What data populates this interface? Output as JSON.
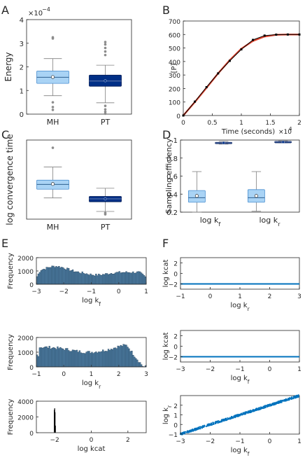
{
  "panel_labels": [
    "A",
    "B",
    "C",
    "D",
    "E",
    "F"
  ],
  "colors": {
    "light_box": "#a9d3f5",
    "light_box_edge": "#4a8fd0",
    "dark_box": "#002f86",
    "hist_bar": "#4e7ea4",
    "line_black": "#000000",
    "line_red": "#e0442e",
    "scatter_blue": "#0072bd"
  },
  "chart_data": [
    {
      "id": "A",
      "type": "box",
      "ylabel": "Energy",
      "y_exponent": "×10^-4",
      "ylim": [
        0,
        4
      ],
      "yticks": [
        0,
        1,
        2,
        3,
        4
      ],
      "categories": [
        "MH",
        "PT"
      ],
      "boxes": [
        {
          "q1": 1.3,
          "median": 1.56,
          "q3": 1.82,
          "whisker_low": 0.78,
          "whisker_high": 2.35,
          "mean": 1.57,
          "outliers": [
            3.2,
            3.25,
            0.5,
            0.3,
            0.18
          ],
          "style": "light"
        },
        {
          "q1": 1.18,
          "median": 1.4,
          "q3": 1.65,
          "whisker_low": 0.48,
          "whisker_high": 2.07,
          "mean": 1.41,
          "outliers": [
            2.5,
            2.65,
            2.8,
            2.95,
            3.05,
            0.35,
            0.2,
            0.1,
            0.02
          ],
          "style": "dark"
        }
      ]
    },
    {
      "id": "B",
      "type": "line",
      "xlabel": "Time (seconds)",
      "x_exponent": "×10^4",
      "ylabel": "[P]",
      "xlim": [
        0,
        2
      ],
      "ylim": [
        0,
        700
      ],
      "xticks": [
        0,
        0.5,
        1,
        1.5,
        2
      ],
      "yticks": [
        0,
        100,
        200,
        300,
        400,
        500,
        600,
        700
      ],
      "series": [
        {
          "color": "red",
          "x": [
            0,
            0.2,
            0.4,
            0.6,
            0.8,
            1.0,
            1.2,
            1.4,
            1.6,
            1.8,
            2.0
          ],
          "y": [
            0,
            100,
            205,
            312,
            410,
            495,
            552,
            585,
            598,
            600,
            600
          ]
        },
        {
          "color": "black",
          "markers": true,
          "x": [
            0,
            0.2,
            0.4,
            0.6,
            0.8,
            1.0,
            1.2,
            1.4,
            1.6,
            1.8,
            2.0
          ],
          "y": [
            0,
            103,
            210,
            312,
            405,
            490,
            560,
            592,
            599,
            600,
            600
          ]
        }
      ]
    },
    {
      "id": "C",
      "type": "box",
      "ylabel": "log convergence time",
      "ylim": [
        1.5,
        5.6
      ],
      "categories": [
        "MH",
        "PT"
      ],
      "boxes": [
        {
          "q1": 3.05,
          "median": 3.3,
          "q3": 3.52,
          "whisker_low": 2.6,
          "whisker_high": 4.2,
          "mean": 3.32,
          "outliers": [
            5.2
          ],
          "style": "light"
        },
        {
          "q1": 2.4,
          "median": 2.55,
          "q3": 2.68,
          "whisker_low": 1.9,
          "whisker_high": 3.1,
          "mean": 2.55,
          "outliers": [
            1.82,
            1.75
          ],
          "style": "dark"
        }
      ]
    },
    {
      "id": "D",
      "type": "box",
      "ylabel": "Sampling efficiency",
      "ylim": [
        0.2,
        1
      ],
      "yticks": [
        0.2,
        0.4,
        0.6,
        0.8,
        1
      ],
      "categories": [
        "log k_f",
        "log k_r"
      ],
      "boxes": [
        {
          "q1": 0.31,
          "median": 0.36,
          "q3": 0.44,
          "whisker_low": 0.2,
          "whisker_high": 0.65,
          "mean": 0.38,
          "outliers": [],
          "style": "light",
          "offset": -0.5
        },
        {
          "q1": 0.962,
          "median": 0.968,
          "q3": 0.975,
          "whisker_low": 0.955,
          "whisker_high": 0.985,
          "mean": 0.968,
          "outliers": [],
          "style": "dark",
          "offset": 0.5
        },
        {
          "q1": 0.31,
          "median": 0.36,
          "q3": 0.45,
          "whisker_low": 0.21,
          "whisker_high": 0.65,
          "mean": 0.38,
          "outliers": [],
          "style": "light",
          "offset": -0.5
        },
        {
          "q1": 0.975,
          "median": 0.98,
          "q3": 0.985,
          "whisker_low": 0.97,
          "whisker_high": 0.99,
          "mean": 0.978,
          "outliers": [],
          "style": "dark",
          "offset": 0.5
        }
      ]
    },
    {
      "id": "E1",
      "type": "histogram",
      "xlabel": "log k_f",
      "ylabel": "Frequency",
      "xlim": [
        -3,
        1
      ],
      "ylim": [
        0,
        2000
      ],
      "xticks": [
        -3,
        -2,
        -1,
        0,
        1
      ],
      "yticks": [
        0,
        1000,
        2000
      ],
      "shape": "kf"
    },
    {
      "id": "E2",
      "type": "histogram",
      "xlabel": "log k_r",
      "ylabel": "Frequency",
      "xlim": [
        -1,
        3
      ],
      "ylim": [
        0,
        2000
      ],
      "xticks": [
        -1,
        0,
        1,
        2,
        3
      ],
      "yticks": [
        0,
        1000,
        2000
      ],
      "shape": "kr"
    },
    {
      "id": "E3",
      "type": "histogram",
      "xlabel": "log kcat",
      "ylabel": "Frequency",
      "xlim": [
        -3,
        3
      ],
      "ylim": [
        0,
        4000
      ],
      "xticks": [
        -2,
        0,
        2
      ],
      "yticks": [
        0,
        2000,
        4000
      ],
      "shape": "kcat",
      "peak_x": -2,
      "peak_y": 3100
    },
    {
      "id": "F1",
      "type": "scatter",
      "xlabel": "log k_r",
      "ylabel": "log kcat",
      "xlim": [
        -1,
        3
      ],
      "ylim": [
        -3,
        3
      ],
      "xticks": [
        -1,
        0,
        1,
        2,
        3
      ],
      "yticks": [
        -2,
        0,
        2
      ],
      "relation": "constant",
      "y_value": -2
    },
    {
      "id": "F2",
      "type": "scatter",
      "xlabel": "log k_f",
      "ylabel": "log kcat",
      "xlim": [
        -3,
        1
      ],
      "ylim": [
        -3,
        3
      ],
      "xticks": [
        -3,
        -2,
        -1,
        0,
        1
      ],
      "yticks": [
        -2,
        0,
        2
      ],
      "relation": "constant",
      "y_value": -2
    },
    {
      "id": "F3",
      "type": "scatter",
      "xlabel": "log k_f",
      "ylabel": "log k_r",
      "xlim": [
        -3,
        1
      ],
      "ylim": [
        -1,
        3
      ],
      "xticks": [
        -3,
        -2,
        -1,
        0,
        1
      ],
      "yticks": [
        -1,
        0,
        1,
        2
      ],
      "relation": "linear",
      "intercept": 2
    }
  ]
}
